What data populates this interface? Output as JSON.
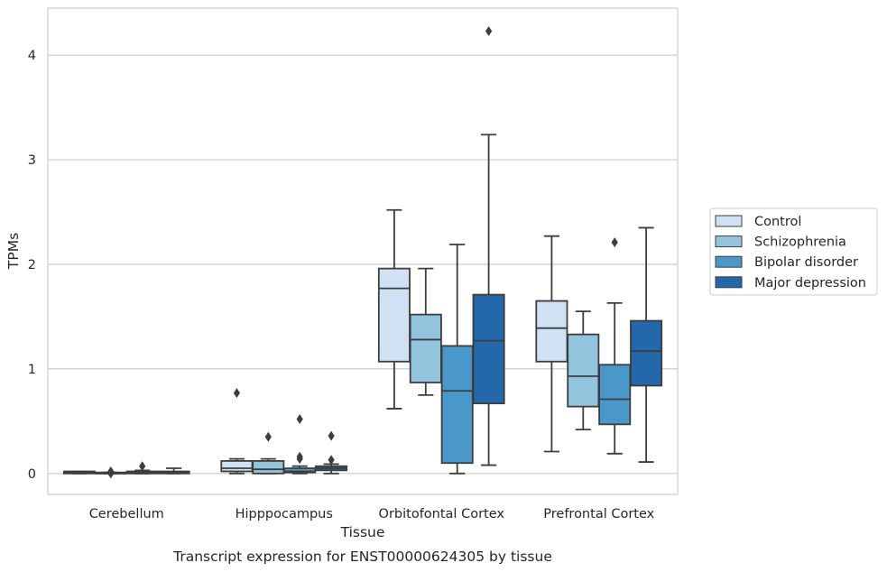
{
  "chart_data": {
    "type": "box",
    "xlabel": "Tissue",
    "ylabel": "TPMs",
    "caption": "Transcript expression for ENST00000624305 by tissue",
    "ylim": [
      -0.2,
      4.45
    ],
    "yticks": [
      0,
      1,
      2,
      3,
      4
    ],
    "grid": "horizontal",
    "legend_position": "right",
    "categories": [
      "Cerebellum",
      "Hipppocampus",
      "Orbitofontal Cortex",
      "Prefrontal Cortex"
    ],
    "series": [
      {
        "name": "Control",
        "color": "#cfe1f2",
        "boxes": [
          {
            "whislo": 0.0,
            "q1": 0.0,
            "med": 0.01,
            "q3": 0.02,
            "whishi": 0.02,
            "fliers": []
          },
          {
            "whislo": 0.0,
            "q1": 0.02,
            "med": 0.05,
            "q3": 0.12,
            "whishi": 0.14,
            "fliers": [
              0.77
            ]
          },
          {
            "whislo": 0.62,
            "q1": 1.07,
            "med": 1.77,
            "q3": 1.96,
            "whishi": 2.52,
            "fliers": []
          },
          {
            "whislo": 0.21,
            "q1": 1.07,
            "med": 1.39,
            "q3": 1.65,
            "whishi": 2.27,
            "fliers": []
          }
        ]
      },
      {
        "name": "Schizophrenia",
        "color": "#93c4de",
        "boxes": [
          {
            "whislo": 0.0,
            "q1": 0.0,
            "med": 0.0,
            "q3": 0.01,
            "whishi": 0.01,
            "fliers": [
              0.02,
              0.0
            ]
          },
          {
            "whislo": 0.0,
            "q1": 0.0,
            "med": 0.04,
            "q3": 0.12,
            "whishi": 0.14,
            "fliers": [
              0.35
            ]
          },
          {
            "whislo": 0.75,
            "q1": 0.87,
            "med": 1.28,
            "q3": 1.52,
            "whishi": 1.96,
            "fliers": []
          },
          {
            "whislo": 0.42,
            "q1": 0.64,
            "med": 0.93,
            "q3": 1.33,
            "whishi": 1.55,
            "fliers": []
          }
        ]
      },
      {
        "name": "Bipolar disorder",
        "color": "#4a98c9",
        "boxes": [
          {
            "whislo": 0.0,
            "q1": 0.0,
            "med": 0.01,
            "q3": 0.02,
            "whishi": 0.03,
            "fliers": [
              0.07
            ]
          },
          {
            "whislo": 0.0,
            "q1": 0.01,
            "med": 0.02,
            "q3": 0.05,
            "whishi": 0.07,
            "fliers": [
              0.52,
              0.16,
              0.14
            ]
          },
          {
            "whislo": 0.0,
            "q1": 0.1,
            "med": 0.79,
            "q3": 1.22,
            "whishi": 2.19,
            "fliers": []
          },
          {
            "whislo": 0.19,
            "q1": 0.47,
            "med": 0.71,
            "q3": 1.04,
            "whishi": 1.63,
            "fliers": [
              2.21
            ]
          }
        ]
      },
      {
        "name": "Major depression",
        "color": "#2468ab",
        "boxes": [
          {
            "whislo": 0.0,
            "q1": 0.0,
            "med": 0.01,
            "q3": 0.02,
            "whishi": 0.05,
            "fliers": []
          },
          {
            "whislo": 0.0,
            "q1": 0.03,
            "med": 0.05,
            "q3": 0.07,
            "whishi": 0.09,
            "fliers": [
              0.36,
              0.13
            ]
          },
          {
            "whislo": 0.08,
            "q1": 0.67,
            "med": 1.27,
            "q3": 1.71,
            "whishi": 3.24,
            "fliers": [
              4.23
            ]
          },
          {
            "whislo": 0.11,
            "q1": 0.84,
            "med": 1.17,
            "q3": 1.46,
            "whishi": 2.35,
            "fliers": []
          }
        ]
      }
    ]
  }
}
